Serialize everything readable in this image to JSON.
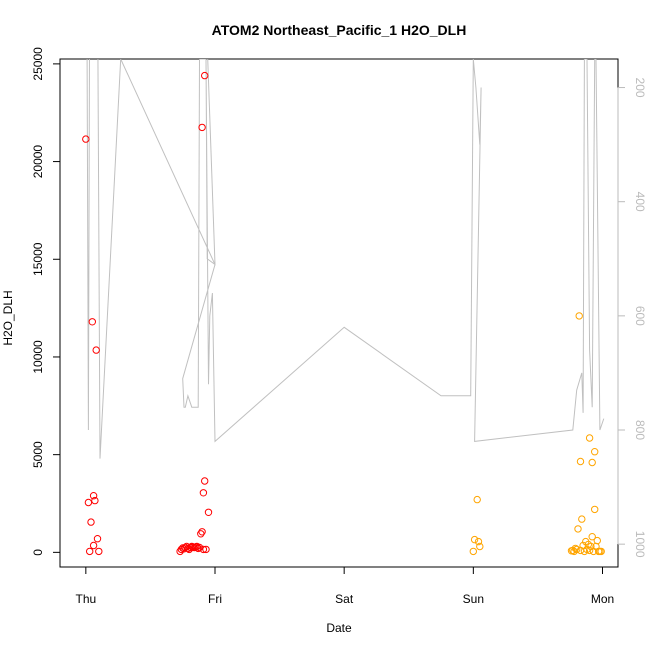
{
  "chart_data": {
    "type": "scatter",
    "title": "ATOM2 Northeast_Pacific_1 H2O_DLH",
    "xlabel": "Date",
    "ylabel": "H2O_DLH",
    "x_ticks": [
      "Thu",
      "Fri",
      "Sat",
      "Sun",
      "Mon"
    ],
    "x_range_days": [
      -0.2,
      4.12
    ],
    "ylim": [
      -750,
      25250
    ],
    "y_ticks": [
      0,
      5000,
      10000,
      15000,
      20000,
      25000
    ],
    "y2_label_ticks": [
      200,
      400,
      600,
      800,
      1000
    ],
    "y2_range": [
      1040,
      150
    ],
    "y2_color": "#bbbbbb",
    "grid": false,
    "series": [
      {
        "color": "#ff0000",
        "points": [
          [
            0.0,
            21150
          ],
          [
            0.05,
            11800
          ],
          [
            0.08,
            10350
          ],
          [
            0.02,
            2550
          ],
          [
            0.06,
            2900
          ],
          [
            0.07,
            2650
          ],
          [
            0.04,
            1550
          ],
          [
            0.09,
            700
          ],
          [
            0.06,
            350
          ],
          [
            0.1,
            50
          ],
          [
            0.03,
            50
          ],
          [
            0.9,
            21750
          ],
          [
            0.92,
            24400
          ],
          [
            0.91,
            3050
          ],
          [
            0.92,
            3650
          ],
          [
            0.95,
            2050
          ],
          [
            0.89,
            950
          ],
          [
            0.9,
            1050
          ],
          [
            0.84,
            250
          ],
          [
            0.85,
            280
          ],
          [
            0.86,
            300
          ],
          [
            0.87,
            200
          ],
          [
            0.88,
            250
          ],
          [
            0.91,
            150
          ],
          [
            0.93,
            150
          ],
          [
            0.73,
            50
          ],
          [
            0.74,
            150
          ],
          [
            0.75,
            220
          ],
          [
            0.76,
            180
          ],
          [
            0.77,
            250
          ],
          [
            0.78,
            300
          ],
          [
            0.79,
            200
          ],
          [
            0.8,
            150
          ],
          [
            0.81,
            250
          ],
          [
            0.82,
            300
          ],
          [
            0.83,
            280
          ]
        ]
      },
      {
        "color": "#ffa500",
        "points": [
          [
            3.03,
            2700
          ],
          [
            3.01,
            650
          ],
          [
            3.04,
            550
          ],
          [
            3.05,
            300
          ],
          [
            3.0,
            50
          ],
          [
            3.82,
            12100
          ],
          [
            3.9,
            5850
          ],
          [
            3.94,
            5150
          ],
          [
            3.83,
            4650
          ],
          [
            3.92,
            4600
          ],
          [
            3.94,
            2200
          ],
          [
            3.84,
            1700
          ],
          [
            3.81,
            1200
          ],
          [
            3.92,
            800
          ],
          [
            3.87,
            550
          ],
          [
            3.96,
            600
          ],
          [
            3.85,
            350
          ],
          [
            3.89,
            400
          ],
          [
            3.91,
            300
          ],
          [
            3.95,
            300
          ],
          [
            3.8,
            150
          ],
          [
            3.79,
            200
          ],
          [
            3.78,
            50
          ],
          [
            3.83,
            100
          ],
          [
            3.86,
            50
          ],
          [
            3.88,
            150
          ],
          [
            3.9,
            100
          ],
          [
            3.93,
            50
          ],
          [
            3.97,
            50
          ],
          [
            3.98,
            50
          ],
          [
            3.99,
            50
          ],
          [
            3.77,
            100
          ],
          [
            3.76,
            80
          ]
        ]
      }
    ],
    "altitude_line": {
      "color": "#c0c0c0",
      "points": [
        [
          -0.01,
          0
        ],
        [
          0.01,
          150
        ],
        [
          0.02,
          800
        ],
        [
          0.03,
          0
        ],
        [
          0.05,
          150
        ],
        [
          0.07,
          0
        ],
        [
          0.09,
          0
        ],
        [
          0.11,
          850
        ],
        [
          0.27,
          150
        ],
        [
          1.0,
          510
        ],
        [
          0.75,
          710
        ],
        [
          0.76,
          760
        ],
        [
          0.77,
          760
        ],
        [
          0.79,
          740
        ],
        [
          0.82,
          760
        ],
        [
          0.87,
          760
        ],
        [
          0.88,
          150
        ],
        [
          0.9,
          150
        ],
        [
          0.93,
          150
        ],
        [
          0.94,
          500
        ],
        [
          1.0,
          510
        ],
        [
          0.92,
          0
        ],
        [
          0.93,
          150
        ],
        [
          0.95,
          720
        ],
        [
          0.96,
          600
        ],
        [
          0.98,
          560
        ],
        [
          1.0,
          820
        ],
        [
          2.0,
          620
        ],
        [
          2.75,
          740
        ],
        [
          2.98,
          740
        ],
        [
          3.0,
          150
        ],
        [
          3.02,
          200
        ],
        [
          3.05,
          300
        ],
        [
          3.06,
          200
        ],
        [
          3.01,
          820
        ],
        [
          3.77,
          800
        ],
        [
          3.8,
          730
        ],
        [
          3.84,
          700
        ],
        [
          3.85,
          770
        ],
        [
          3.86,
          150
        ],
        [
          3.88,
          150
        ],
        [
          3.9,
          660
        ],
        [
          3.92,
          760
        ],
        [
          3.94,
          150
        ],
        [
          3.95,
          150
        ],
        [
          3.98,
          800
        ],
        [
          4.01,
          780
        ]
      ]
    }
  }
}
